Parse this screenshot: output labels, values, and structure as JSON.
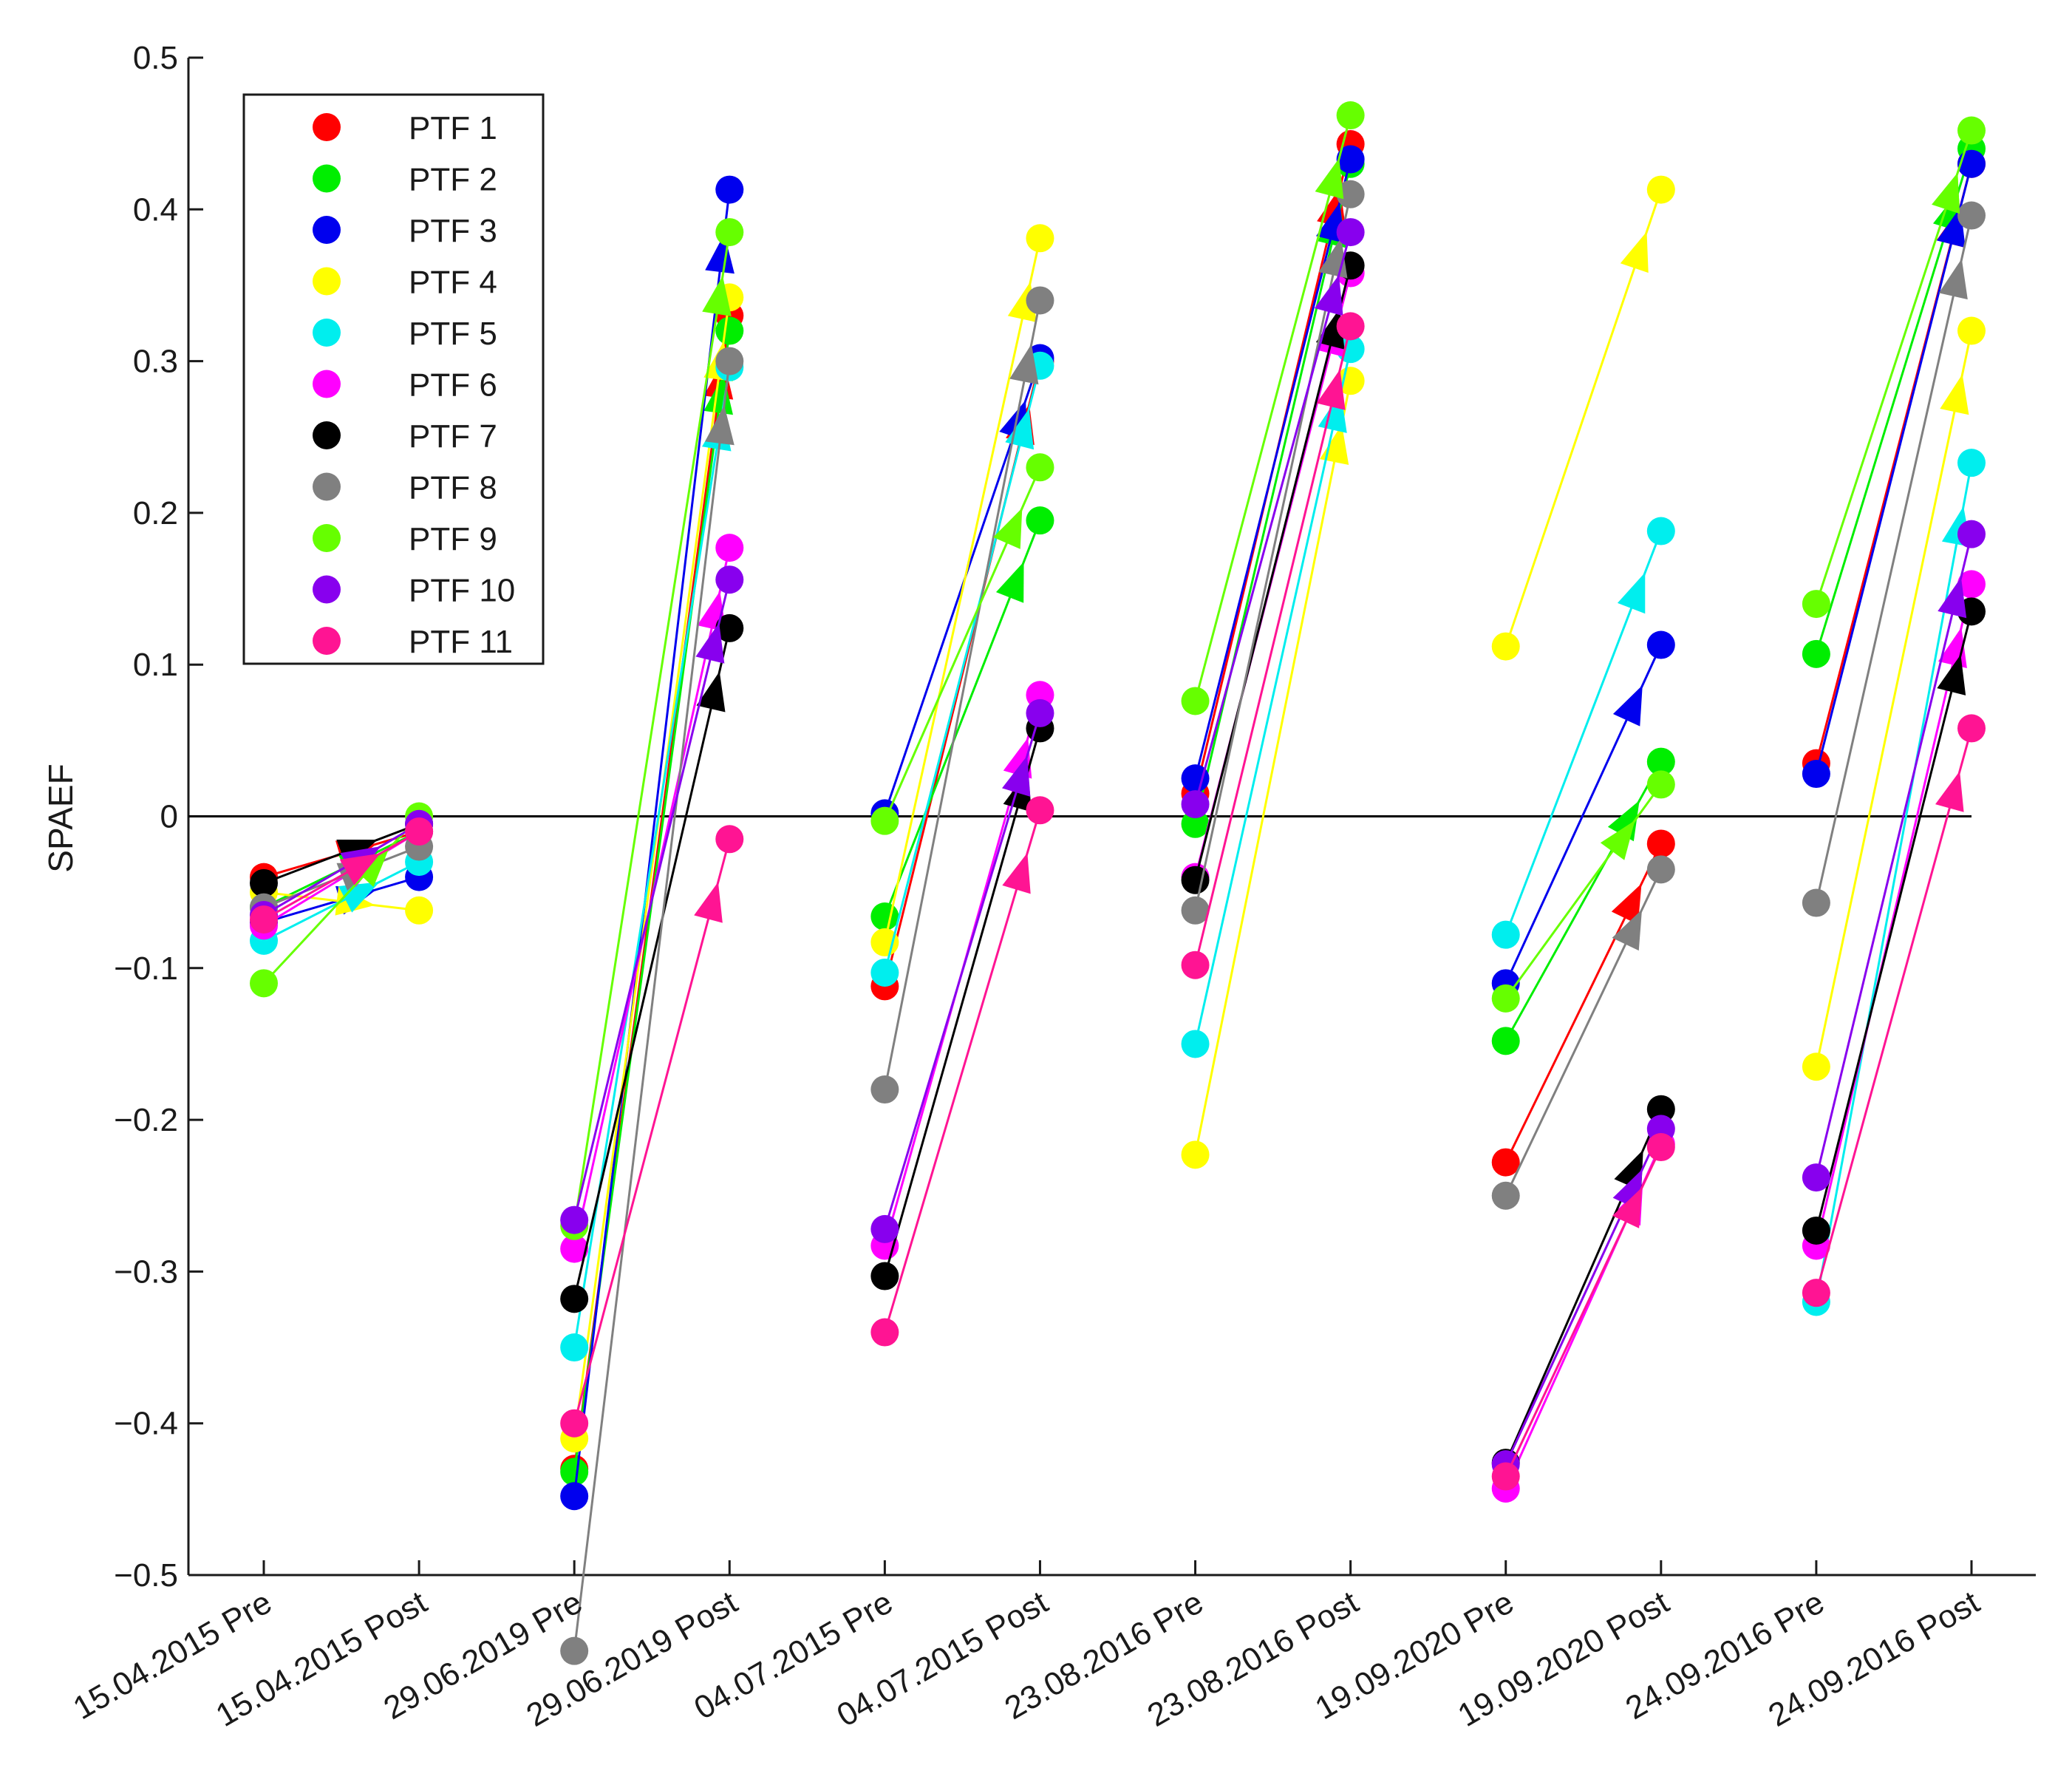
{
  "chart_data": {
    "type": "line",
    "title": "",
    "xlabel": "",
    "ylabel": "SPAEF",
    "ylim": [
      -0.5,
      0.5
    ],
    "yticks": [
      0.5,
      0.4,
      0.3,
      0.2,
      0.1,
      0,
      -0.1,
      -0.2,
      -0.3,
      -0.4,
      -0.5
    ],
    "ytick_labels": [
      "0.5",
      "0.4",
      "0.3",
      "0.2",
      "0.1",
      "0",
      "−0.1",
      "−0.2",
      "−0.3",
      "−0.4",
      "−0.5"
    ],
    "grid": false,
    "zero_line": true,
    "legend_position": "top-left",
    "categories": [
      "15.04.2015 Pre",
      "15.04.2015 Post",
      "29.06.2019 Pre",
      "29.06.2019 Post",
      "04.07.2015 Pre",
      "04.07.2015 Post",
      "23.08.2016 Pre",
      "23.08.2016 Post",
      "19.09.2020 Pre",
      "19.09.2020 Post",
      "24.09.2016 Pre",
      "24.09.2016 Post"
    ],
    "series": [
      {
        "name": "PTF 1",
        "color": "#ff0000",
        "values": [
          -0.04,
          -0.01,
          -0.43,
          0.33,
          -0.112,
          0.3,
          0.015,
          0.443,
          -0.228,
          -0.018,
          0.035,
          0.43
        ]
      },
      {
        "name": "PTF 2",
        "color": "#00ee00",
        "values": [
          -0.06,
          -0.01,
          -0.432,
          0.32,
          -0.066,
          0.195,
          -0.005,
          0.43,
          -0.148,
          0.036,
          0.107,
          0.44
        ]
      },
      {
        "name": "PTF 3",
        "color": "#0000ee",
        "values": [
          -0.07,
          -0.04,
          -0.448,
          0.413,
          0.002,
          0.302,
          0.025,
          0.433,
          -0.11,
          0.113,
          0.028,
          0.43
        ]
      },
      {
        "name": "PTF 4",
        "color": "#ffff00",
        "values": [
          -0.05,
          -0.062,
          -0.41,
          0.342,
          -0.083,
          0.381,
          -0.223,
          0.287,
          0.112,
          0.413,
          -0.165,
          0.32
        ]
      },
      {
        "name": "PTF 5",
        "color": "#00eeee",
        "values": [
          -0.082,
          -0.03,
          -0.35,
          0.296,
          -0.103,
          0.297,
          -0.15,
          0.308,
          -0.078,
          0.188,
          -0.32,
          0.233
        ]
      },
      {
        "name": "PTF 6",
        "color": "#ff00ff",
        "values": [
          -0.072,
          -0.01,
          -0.285,
          0.177,
          -0.283,
          0.08,
          -0.04,
          0.358,
          -0.443,
          -0.216,
          -0.283,
          0.153
        ]
      },
      {
        "name": "PTF 7",
        "color": "#000000",
        "values": [
          -0.044,
          -0.005,
          -0.318,
          0.124,
          -0.303,
          0.058,
          -0.042,
          0.363,
          -0.426,
          -0.193,
          -0.273,
          0.135
        ]
      },
      {
        "name": "PTF 8",
        "color": "#808080",
        "values": [
          -0.06,
          -0.02,
          -0.55,
          0.3,
          -0.18,
          0.34,
          -0.062,
          0.41,
          -0.25,
          -0.035,
          -0.057,
          0.396
        ]
      },
      {
        "name": "PTF 9",
        "color": "#66ff00",
        "values": [
          -0.11,
          0.0,
          -0.27,
          0.385,
          -0.003,
          0.23,
          0.076,
          0.462,
          -0.12,
          0.021,
          0.14,
          0.452
        ]
      },
      {
        "name": "PTF 10",
        "color": "#8800ee",
        "values": [
          -0.065,
          -0.005,
          -0.266,
          0.156,
          -0.272,
          0.068,
          0.008,
          0.385,
          -0.427,
          -0.206,
          -0.238,
          0.186
        ]
      },
      {
        "name": "PTF 11",
        "color": "#ff1493",
        "values": [
          -0.068,
          -0.01,
          -0.4,
          -0.015,
          -0.34,
          0.004,
          -0.098,
          0.323,
          -0.435,
          -0.218,
          -0.314,
          0.058
        ]
      }
    ]
  }
}
